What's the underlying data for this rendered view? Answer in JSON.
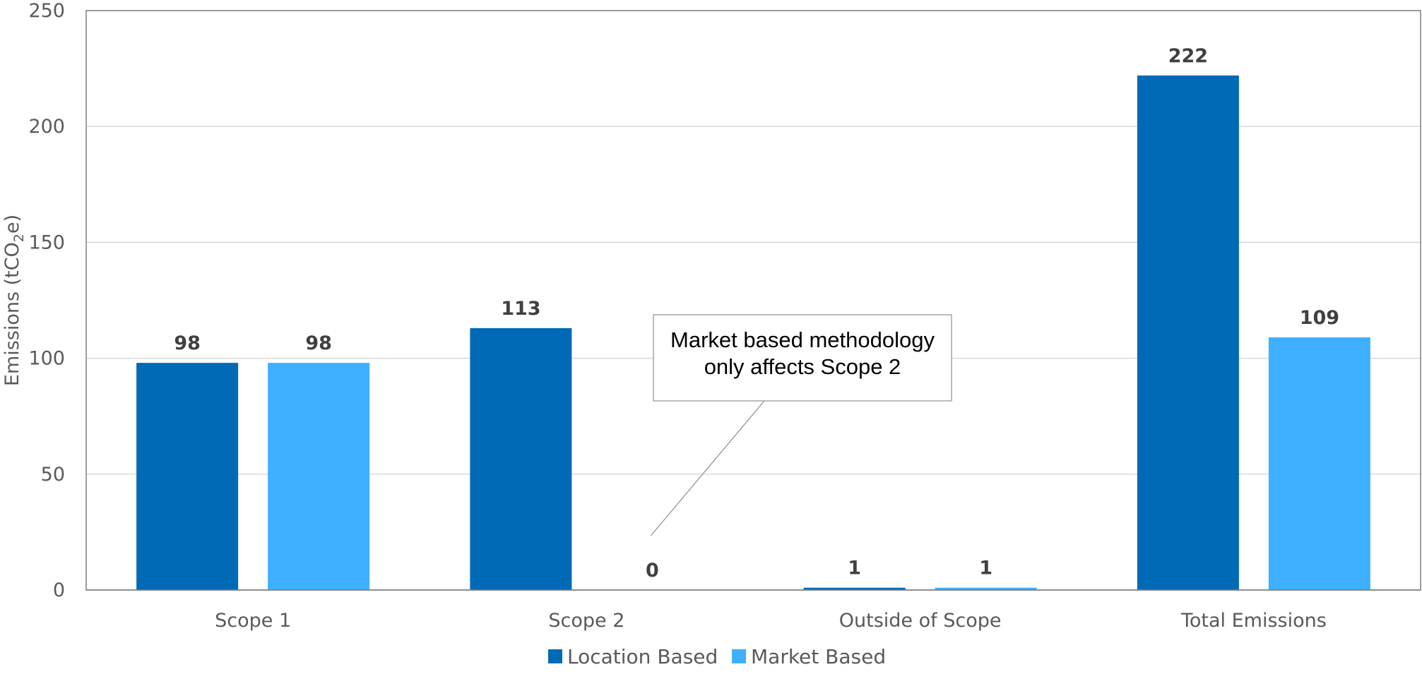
{
  "chart_data": {
    "type": "bar",
    "categories": [
      "Scope 1",
      "Scope 2",
      "Outside of Scope",
      "Total Emissions"
    ],
    "series": [
      {
        "name": "Location Based",
        "color": "#006ab6",
        "values": [
          98,
          113,
          1,
          222
        ]
      },
      {
        "name": "Market Based",
        "color": "#3fafff",
        "values": [
          98,
          0,
          1,
          109
        ]
      }
    ],
    "ylabel": {
      "main": "Emissions (tCO",
      "sub": "2",
      "end": "e)"
    },
    "ylim": [
      0,
      250
    ],
    "yticks": [
      0,
      50,
      100,
      150,
      200,
      250
    ],
    "grid": true,
    "legend": "bottom-center",
    "annotation": {
      "lines": [
        "Market based methodology",
        "only affects Scope 2"
      ],
      "points_to": {
        "category": "Scope 2",
        "series": "Market Based"
      }
    }
  }
}
